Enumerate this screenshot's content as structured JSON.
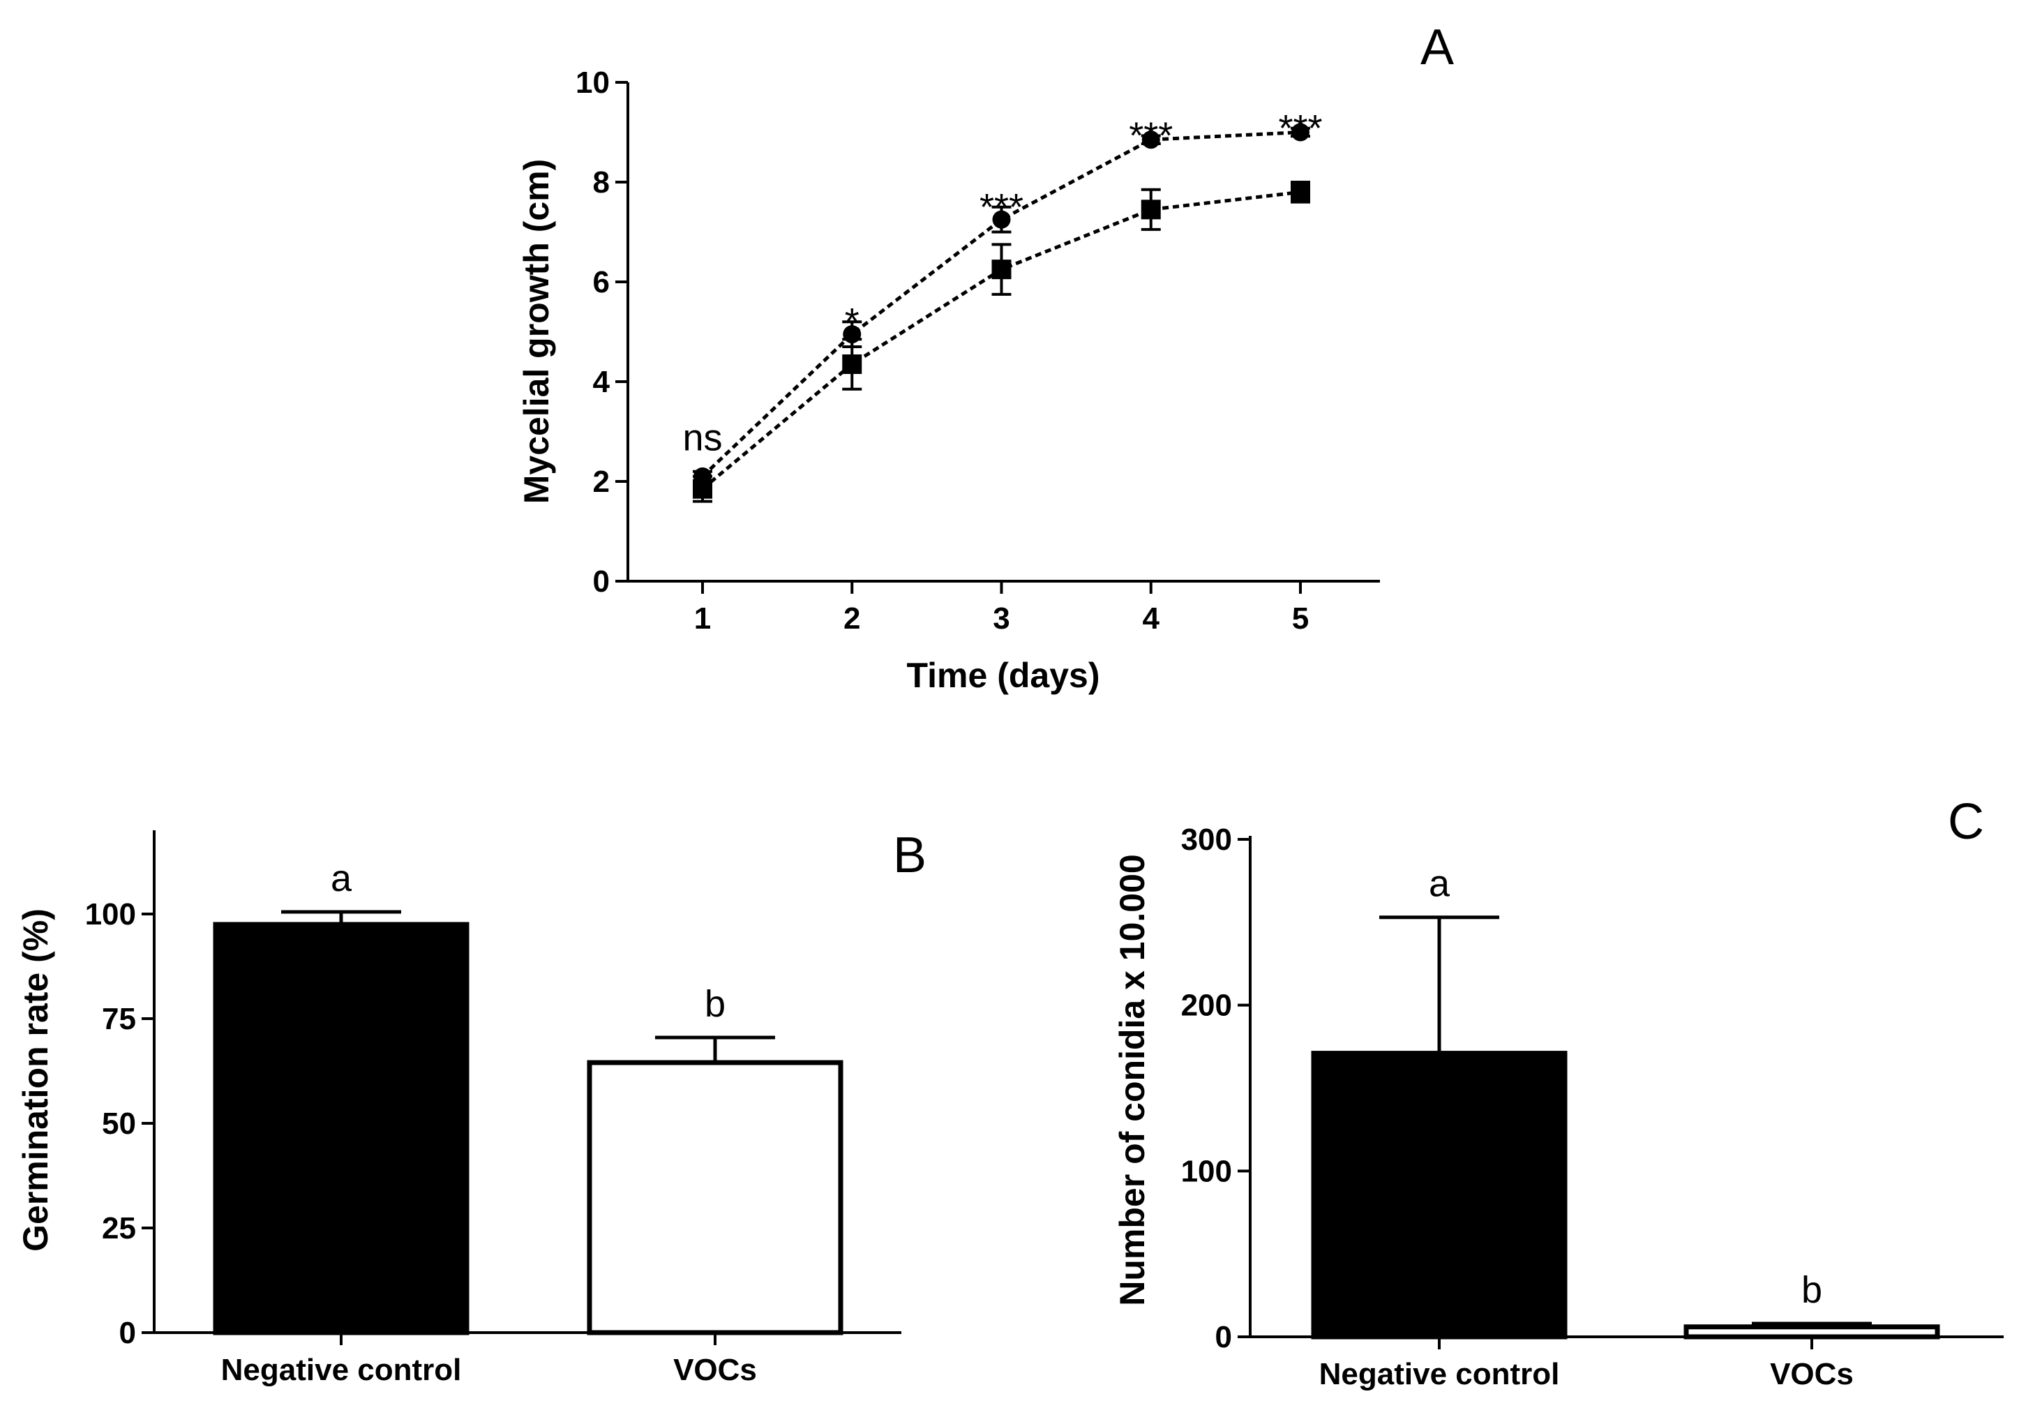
{
  "colors": {
    "ink": "#000000",
    "background": "#ffffff"
  },
  "chart_data": [
    {
      "panel": "A",
      "type": "line",
      "xlabel": "Time (days)",
      "ylabel": "Mycelial growth (cm)",
      "x": [
        1,
        2,
        3,
        4,
        5
      ],
      "xlim": [
        0.5,
        5.5
      ],
      "ylim": [
        0,
        10
      ],
      "yticks": [
        0,
        2,
        4,
        6,
        8,
        10
      ],
      "grid": false,
      "series": [
        {
          "name": "circle",
          "marker": "circle",
          "linestyle": "dotted",
          "values": [
            2.1,
            4.95,
            7.25,
            8.85,
            9.0
          ],
          "errors": [
            0.1,
            0.25,
            0.25,
            0.08,
            0.08
          ]
        },
        {
          "name": "square",
          "marker": "square",
          "linestyle": "dotted",
          "values": [
            1.85,
            4.35,
            6.25,
            7.45,
            7.8
          ],
          "errors": [
            0.25,
            0.5,
            0.5,
            0.4,
            0.2
          ]
        }
      ],
      "annotations": [
        "ns",
        "*",
        "***",
        "***",
        "***"
      ]
    },
    {
      "panel": "B",
      "type": "bar",
      "ylabel": "Germination rate (%)",
      "categories": [
        "Negative control",
        "VOCs"
      ],
      "values": [
        97.5,
        64.5
      ],
      "errors": [
        3,
        6
      ],
      "fills": [
        "#000000",
        "#ffffff"
      ],
      "ylim": [
        0,
        120
      ],
      "yticks": [
        0,
        25,
        50,
        75,
        100
      ],
      "grid": false,
      "letters": [
        "a",
        "b"
      ]
    },
    {
      "panel": "C",
      "type": "bar",
      "ylabel": "Number of conidia x 10.000",
      "categories": [
        "Negative control",
        "VOCs"
      ],
      "values": [
        171,
        6
      ],
      "errors": [
        82,
        2
      ],
      "fills": [
        "#000000",
        "#ffffff"
      ],
      "ylim": [
        0,
        300
      ],
      "yticks": [
        0,
        100,
        200,
        300
      ],
      "grid": false,
      "letters": [
        "a",
        "b"
      ]
    }
  ]
}
